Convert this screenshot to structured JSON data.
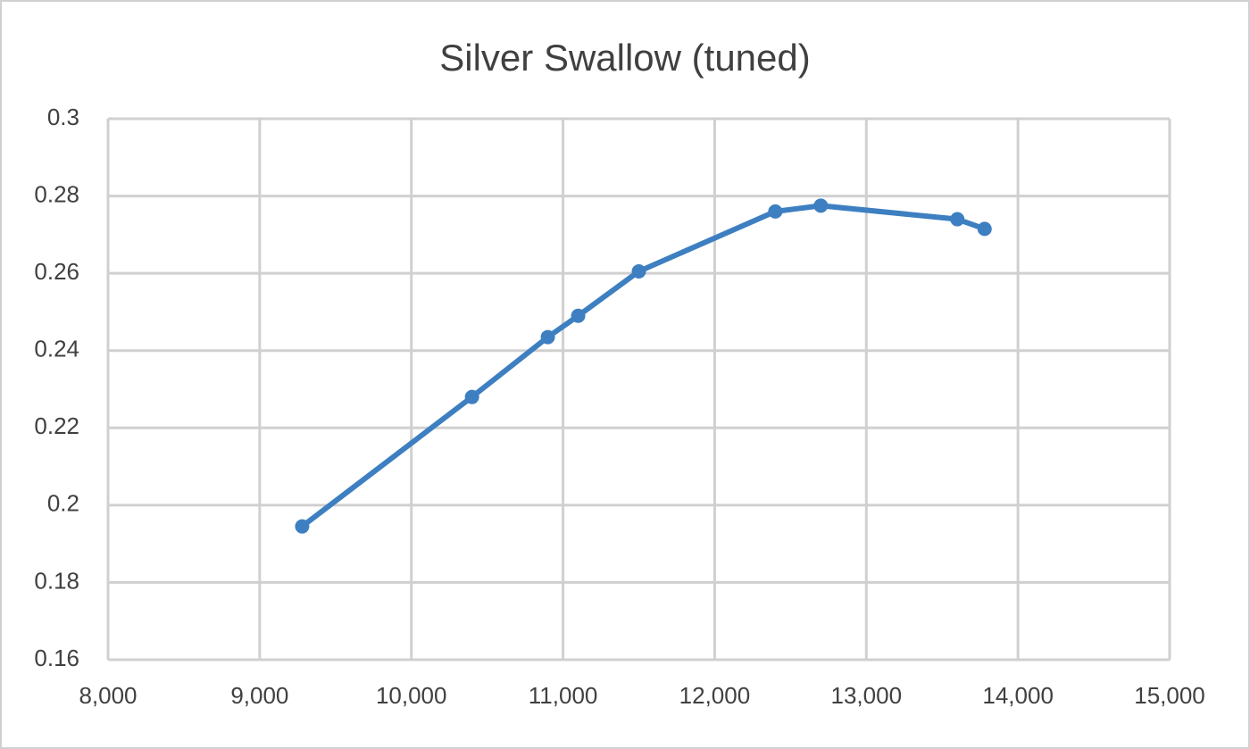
{
  "chart_data": {
    "type": "line",
    "title": "Silver Swallow (tuned)",
    "x": [
      9280,
      10400,
      10900,
      11100,
      11500,
      12400,
      12700,
      13600,
      13780
    ],
    "series": [
      {
        "color": "#3d7fc1",
        "values": [
          0.1945,
          0.228,
          0.2435,
          0.249,
          0.2605,
          0.276,
          0.2775,
          0.274,
          0.2715
        ]
      }
    ],
    "xlim": [
      8000,
      15000
    ],
    "xticks": [
      {
        "value": 8000,
        "label": "8,000"
      },
      {
        "value": 9000,
        "label": "9,000"
      },
      {
        "value": 10000,
        "label": "10,000"
      },
      {
        "value": 11000,
        "label": "11,000"
      },
      {
        "value": 12000,
        "label": "12,000"
      },
      {
        "value": 13000,
        "label": "13,000"
      },
      {
        "value": 14000,
        "label": "14,000"
      },
      {
        "value": 15000,
        "label": "15,000"
      }
    ],
    "ylim": [
      0.16,
      0.3
    ],
    "yticks": [
      0.16,
      0.18,
      0.2,
      0.22,
      0.24,
      0.26,
      0.28,
      0.3
    ],
    "grid": true
  }
}
